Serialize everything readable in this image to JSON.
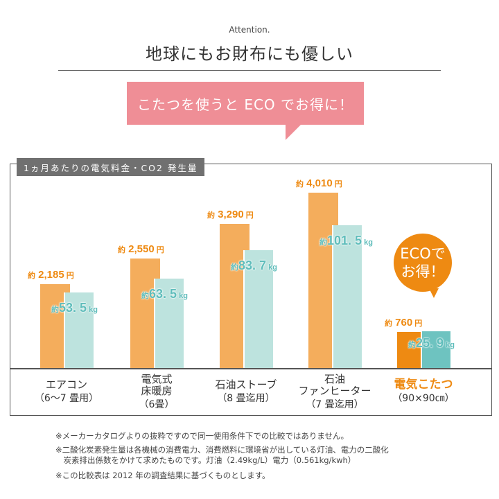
{
  "header": {
    "attention": "Attention.",
    "title": "地球にもお財布にも優しい",
    "bubble": "こたつを使うと ECO でお得に！"
  },
  "colors": {
    "orange": "#f4ad5c",
    "teal": "#bde3de",
    "kotatsu_orange": "#ee8a12",
    "kotatsu_teal": "#6ec3c0",
    "orange_text": "#ee8a12",
    "teal_text": "#5fbdbb",
    "pink": "#ef8e96"
  },
  "chart_data": {
    "type": "bar",
    "title": "1ヵ月あたりの電気料金・CO2 発生量",
    "categories": [
      "エアコン（6〜7畳用）",
      "電気式床暖房（6畳）",
      "石油ストーブ（8畳迄用）",
      "石油ファンヒーター（7畳迄用）",
      "電気こたつ（90×90㎝）"
    ],
    "series": [
      {
        "name": "電気料金",
        "unit": "円",
        "values": [
          2185,
          2550,
          3290,
          4010,
          760
        ],
        "labels": [
          "2,185",
          "2,550",
          "3,290",
          "4,010",
          "760"
        ]
      },
      {
        "name": "CO2 発生量",
        "unit": "kg",
        "values": [
          53.5,
          63.5,
          83.7,
          101.5,
          25.9
        ],
        "labels": [
          "53. 5",
          "63. 5",
          "83. 7",
          "101. 5",
          "25. 9"
        ]
      }
    ],
    "prefix": "約",
    "grid": false
  },
  "categories": [
    {
      "lines": [
        "エアコン"
      ],
      "sub": "（6〜7 畳用）"
    },
    {
      "lines": [
        "電気式",
        "床暖房"
      ],
      "sub": "（6畳）"
    },
    {
      "lines": [
        "石油ストーブ"
      ],
      "sub": "（8 畳迄用）"
    },
    {
      "lines": [
        "石油",
        "ファンヒーター"
      ],
      "sub": "（7 畳迄用）"
    },
    {
      "lines": [
        "電気こたつ"
      ],
      "sub": "（90×90㎝）"
    }
  ],
  "eco_badge": {
    "line1": "ECOで",
    "line2": "お得！"
  },
  "notes": [
    "※メーカーカタログよりの抜粋ですので同一使用条件下での比較ではありません。",
    "※二酸化炭素発生量は各機械の消費電力、消費燃料に環境省が出している灯油、電力の二酸化",
    "　炭素排出係数をかけて求めたものです。灯油（2.49kg/L）電力（0.561kg/kwh）",
    "※この比較表は 2012 年の調査結果に基づくものとします。"
  ]
}
